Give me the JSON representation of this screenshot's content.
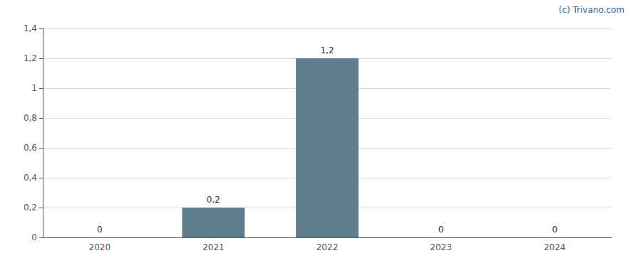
{
  "chart_data": {
    "type": "bar",
    "categories": [
      "2020",
      "2021",
      "2022",
      "2023",
      "2024"
    ],
    "values": [
      0,
      0.2,
      1.2,
      0,
      0
    ],
    "value_labels": [
      "0",
      "0,2",
      "1,2",
      "0",
      "0"
    ],
    "data_labels": true,
    "color": "#5f7d8c",
    "ylim": [
      0,
      1.4
    ],
    "yticks": [
      0,
      {
        "value": 0.2,
        "label": "0,2"
      },
      {
        "value": 0.4,
        "label": "0,4"
      },
      {
        "value": 0.6,
        "label": "0,6"
      },
      {
        "value": 0.8,
        "label": "0,8"
      },
      1,
      {
        "value": 1.2,
        "label": "1,2"
      },
      {
        "value": 1.4,
        "label": "1,4"
      }
    ],
    "grid": true,
    "annotations": [
      "(c) Trivano.com"
    ]
  }
}
